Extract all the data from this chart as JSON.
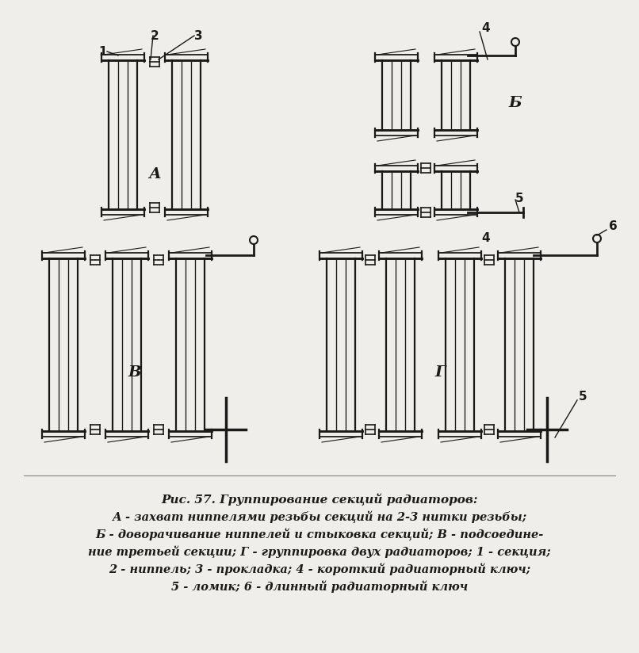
{
  "bg_color": "#f0eeea",
  "line_color": "#1a1a1a",
  "title_line1": "Рис. 57. Группирование секций радиаторов:",
  "title_line2": "А - захват ниппелями резьбы секций на 2-3 нитки резьбы;",
  "title_line3": "Б - доворачивание ниппелей и стыковка секций; В - подсоедине-",
  "title_line4": "ние третьей секции; Г - группировка двух радиаторов; 1 - секция;",
  "title_line5": "2 - ниппель; 3 - прокладка; 4 - короткий радиаторный ключ;",
  "title_line6": "5 - ломик; 6 - длинный радиаторный ключ",
  "label_A": "А",
  "label_B": "Б",
  "label_V": "В",
  "label_G": "Г",
  "labels_top": [
    "1",
    "2",
    "3",
    "4",
    "5",
    "6"
  ]
}
